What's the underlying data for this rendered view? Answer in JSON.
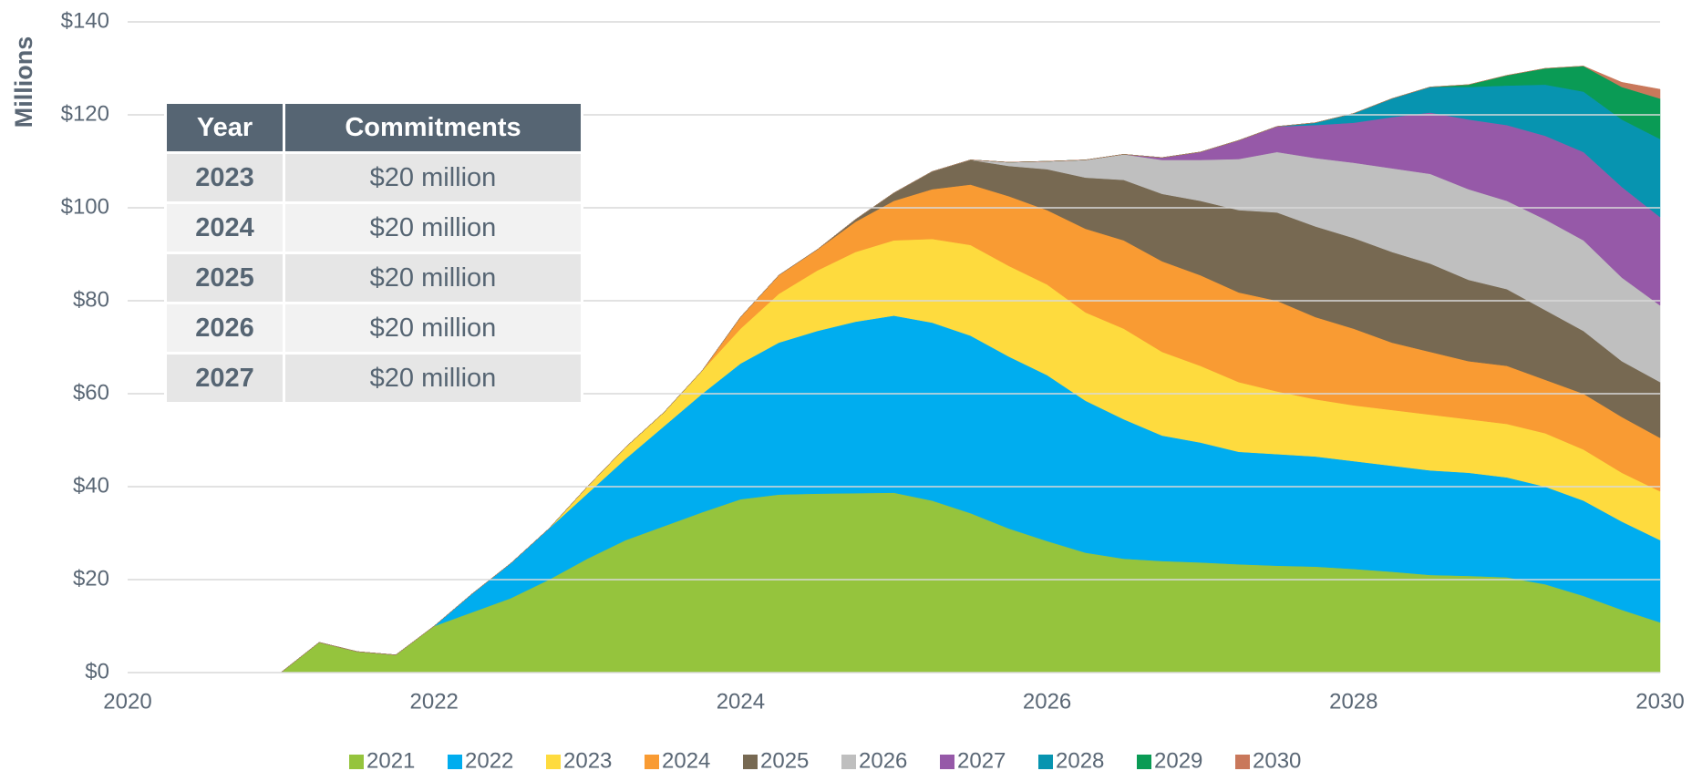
{
  "chart_data": {
    "type": "stacked_area",
    "y_label": "Millions",
    "x": [
      2021,
      2021.25,
      2021.5,
      2021.75,
      2022,
      2022.25,
      2022.5,
      2022.75,
      2023,
      2023.25,
      2023.5,
      2023.75,
      2024,
      2024.25,
      2024.5,
      2024.75,
      2025,
      2025.25,
      2025.5,
      2025.75,
      2026,
      2026.25,
      2026.5,
      2026.75,
      2027,
      2027.25,
      2027.5,
      2027.75,
      2028,
      2028.25,
      2028.5,
      2028.75,
      2029,
      2029.25,
      2029.5,
      2029.75,
      2030
    ],
    "xlim": [
      2020,
      2030
    ],
    "xticks": [
      2020,
      2022,
      2024,
      2026,
      2028,
      2030
    ],
    "ylim": [
      0,
      140
    ],
    "yticks": [
      {
        "value": 0,
        "label": "$0"
      },
      {
        "value": 20,
        "label": "$20"
      },
      {
        "value": 40,
        "label": "$40"
      },
      {
        "value": 60,
        "label": "$60"
      },
      {
        "value": 80,
        "label": "$80"
      },
      {
        "value": 100,
        "label": "$100"
      },
      {
        "value": 120,
        "label": "$120"
      },
      {
        "value": 140,
        "label": "$140"
      }
    ],
    "grid": true,
    "legend": "bottom",
    "series": [
      {
        "name": "2021",
        "color": "#95c43d",
        "values": [
          0,
          6.5,
          4.5,
          3.8,
          10,
          13,
          16,
          20,
          24.5,
          28.5,
          31.5,
          34.5,
          37.3,
          38.3,
          38.5,
          38.6,
          38.7,
          37,
          34.3,
          31,
          28.3,
          25.8,
          24.5,
          24,
          23.7,
          23.3,
          23,
          22.8,
          22.3,
          21.7,
          21,
          20.8,
          20.5,
          19,
          16.5,
          13.5,
          10.8
        ]
      },
      {
        "name": "2022",
        "color": "#00adef",
        "values": [
          0,
          0,
          0,
          0,
          0,
          4,
          7.5,
          11,
          14,
          17.5,
          21.5,
          25.5,
          29.2,
          32.7,
          35,
          36.9,
          38.1,
          38.3,
          38.2,
          37,
          35.7,
          32.7,
          30,
          27,
          25.8,
          24.2,
          24,
          23.7,
          23.2,
          22.8,
          22.5,
          22.2,
          21.5,
          21,
          20.5,
          19,
          17.7
        ]
      },
      {
        "name": "2023",
        "color": "#fedb3e",
        "values": [
          0,
          0,
          0,
          0,
          0,
          0,
          0,
          0,
          1.5,
          2.5,
          3,
          5,
          7.5,
          10.5,
          13,
          15,
          16.2,
          18,
          19.5,
          19.5,
          19.5,
          19,
          19.5,
          18,
          16.5,
          15,
          13.5,
          12.3,
          12,
          12,
          12,
          11.5,
          11.5,
          11.5,
          11,
          10.5,
          10.5
        ]
      },
      {
        "name": "2024",
        "color": "#f99b33",
        "values": [
          0,
          0,
          0,
          0,
          0,
          0,
          0,
          0,
          0,
          0,
          0,
          0,
          2.5,
          4,
          4.5,
          6.5,
          8.5,
          10.7,
          13,
          15,
          16,
          18,
          19,
          19.5,
          19.5,
          19.3,
          19.5,
          17.7,
          16.5,
          14.5,
          13.5,
          12.5,
          12.5,
          11.5,
          12,
          12,
          11.5
        ]
      },
      {
        "name": "2025",
        "color": "#776952",
        "values": [
          0,
          0,
          0,
          0,
          0,
          0,
          0,
          0,
          0,
          0,
          0,
          0,
          0,
          0,
          0,
          0.5,
          1.7,
          3.8,
          5.3,
          6.5,
          8.8,
          11,
          13,
          14.5,
          16,
          17.7,
          19,
          19.5,
          19.5,
          19.5,
          19,
          17.5,
          16.5,
          15,
          13.5,
          12,
          12
        ]
      },
      {
        "name": "2026",
        "color": "#bfbfbf",
        "values": [
          0,
          0,
          0,
          0,
          0,
          0,
          0,
          0,
          0,
          0,
          0,
          0,
          0,
          0,
          0,
          0,
          0,
          0,
          0,
          0.8,
          1.7,
          3.8,
          5.5,
          7.3,
          8.8,
          11,
          13,
          14.7,
          16.2,
          18,
          19.3,
          19.5,
          19,
          19.5,
          19.5,
          18,
          16.5
        ]
      },
      {
        "name": "2027",
        "color": "#9659a8",
        "values": [
          0,
          0,
          0,
          0,
          0,
          0,
          0,
          0,
          0,
          0,
          0,
          0,
          0,
          0,
          0,
          0,
          0,
          0,
          0,
          0,
          0,
          0,
          0,
          0.5,
          1.7,
          4,
          5.5,
          7.1,
          8.6,
          11,
          13.2,
          15,
          16.3,
          18,
          19,
          19.5,
          19
        ]
      },
      {
        "name": "2028",
        "color": "#0794b0",
        "values": [
          0,
          0,
          0,
          0,
          0,
          0,
          0,
          0,
          0,
          0,
          0,
          0,
          0,
          0,
          0,
          0,
          0,
          0,
          0,
          0,
          0,
          0,
          0,
          0,
          0,
          0,
          0,
          0.5,
          2,
          4,
          5.5,
          7,
          8.5,
          11,
          13,
          14.5,
          16.8
        ]
      },
      {
        "name": "2029",
        "color": "#0a9b55",
        "values": [
          0,
          0,
          0,
          0,
          0,
          0,
          0,
          0,
          0,
          0,
          0,
          0,
          0,
          0,
          0,
          0,
          0,
          0,
          0,
          0,
          0,
          0,
          0,
          0,
          0,
          0,
          0,
          0,
          0,
          0,
          0,
          0.5,
          2.2,
          3.5,
          5.5,
          7,
          8.7
        ]
      },
      {
        "name": "2030",
        "color": "#c9785b",
        "values": [
          0,
          0,
          0,
          0,
          0,
          0,
          0,
          0,
          0,
          0,
          0,
          0,
          0,
          0,
          0,
          0,
          0,
          0,
          0,
          0,
          0,
          0,
          0,
          0,
          0,
          0,
          0,
          0,
          0,
          0,
          0,
          0,
          0,
          0,
          0,
          1,
          2
        ]
      }
    ]
  },
  "table": {
    "header": [
      "Year",
      "Commitments"
    ],
    "rows": [
      [
        "2023",
        "$20 million"
      ],
      [
        "2024",
        "$20 million"
      ],
      [
        "2025",
        "$20 million"
      ],
      [
        "2026",
        "$20 million"
      ],
      [
        "2027",
        "$20 million"
      ]
    ]
  }
}
